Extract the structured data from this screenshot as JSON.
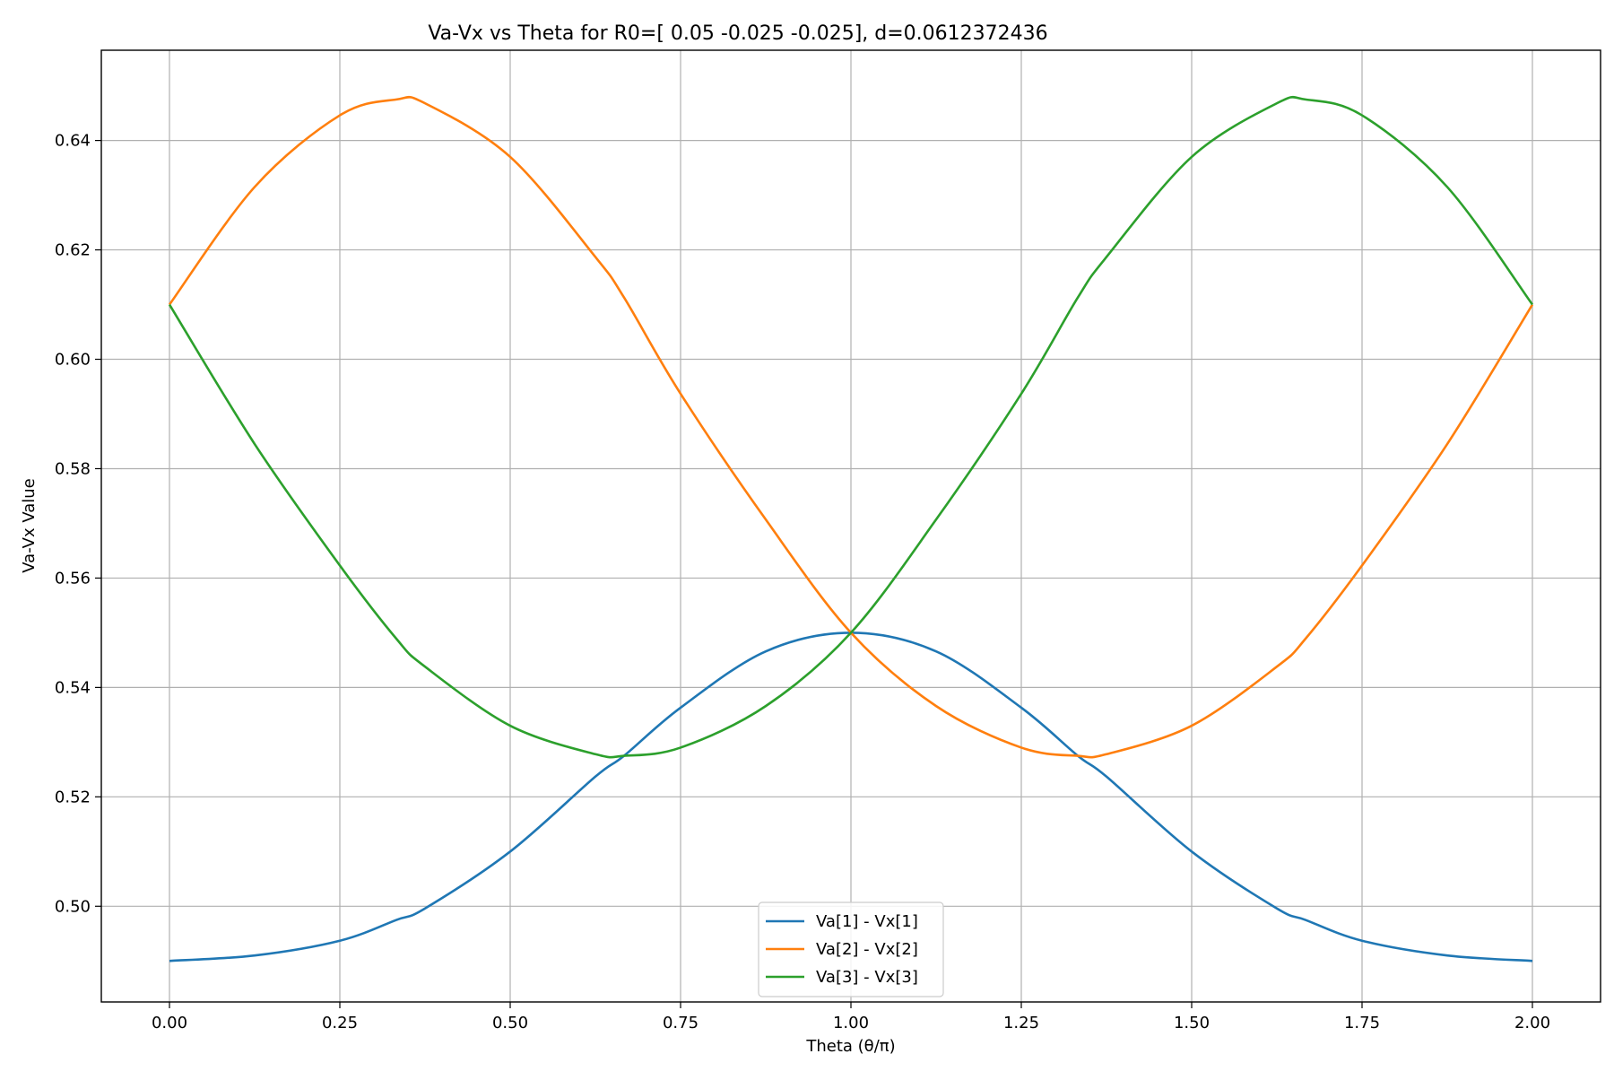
{
  "chart_data": {
    "type": "line",
    "title": "Va-Vx vs Theta for R0=[ 0.05  -0.025 -0.025], d=0.0612372436",
    "xlabel": "Theta (θ/π)",
    "ylabel": "Va-Vx Value",
    "xlim": [
      -0.1,
      2.1
    ],
    "ylim": [
      0.4825,
      0.6565
    ],
    "xticks": [
      0.0,
      0.25,
      0.5,
      0.75,
      1.0,
      1.25,
      1.5,
      1.75,
      2.0
    ],
    "xtick_labels": [
      "0.00",
      "0.25",
      "0.50",
      "0.75",
      "1.00",
      "1.25",
      "1.50",
      "1.75",
      "2.00"
    ],
    "yticks": [
      0.5,
      0.52,
      0.54,
      0.56,
      0.58,
      0.6,
      0.62,
      0.64
    ],
    "ytick_labels": [
      "0.50",
      "0.52",
      "0.54",
      "0.56",
      "0.58",
      "0.60",
      "0.62",
      "0.64"
    ],
    "grid": true,
    "legend_position": "lower center",
    "x": [
      0.0,
      0.125,
      0.25,
      0.333,
      0.375,
      0.5,
      0.625,
      0.667,
      0.75,
      0.875,
      1.0,
      1.125,
      1.25,
      1.333,
      1.375,
      1.5,
      1.625,
      1.667,
      1.75,
      1.875,
      2.0
    ],
    "series": [
      {
        "name": "Va[1] - Vx[1]",
        "color": "#1f77b4",
        "values": [
          0.49,
          0.491,
          0.4937,
          0.4975,
          0.4996,
          0.51,
          0.5237,
          0.5275,
          0.5363,
          0.5466,
          0.55,
          0.5466,
          0.5363,
          0.5275,
          0.5237,
          0.51,
          0.4996,
          0.4975,
          0.4937,
          0.491,
          0.49
        ]
      },
      {
        "name": "Va[2] - Vx[2]",
        "color": "#ff7f0e",
        "values": [
          0.61,
          0.6315,
          0.6446,
          0.6475,
          0.6468,
          0.637,
          0.6187,
          0.6113,
          0.5937,
          0.5707,
          0.55,
          0.5366,
          0.529,
          0.5275,
          0.5278,
          0.533,
          0.5438,
          0.5489,
          0.5623,
          0.5845,
          0.61
        ]
      },
      {
        "name": "Va[3] - Vx[3]",
        "color": "#2ca02c",
        "values": [
          0.61,
          0.5845,
          0.5623,
          0.5489,
          0.5438,
          0.533,
          0.5278,
          0.5275,
          0.529,
          0.5366,
          0.55,
          0.5707,
          0.5937,
          0.6113,
          0.6187,
          0.637,
          0.6468,
          0.6475,
          0.6446,
          0.6315,
          0.61
        ]
      }
    ]
  }
}
